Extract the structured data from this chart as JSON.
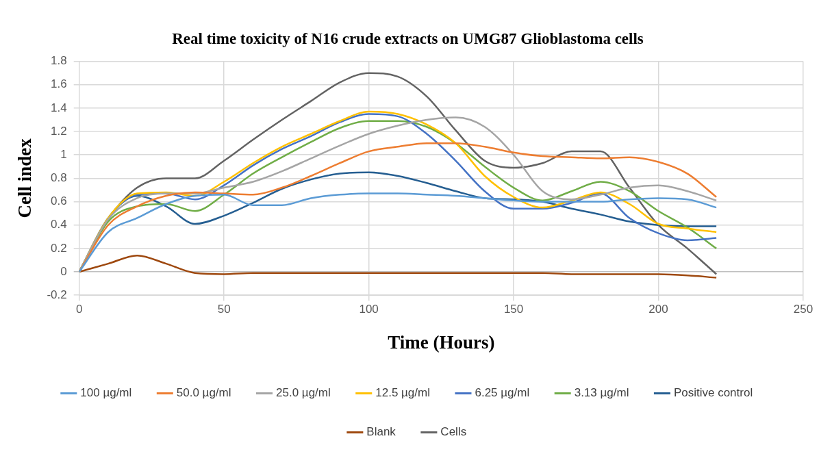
{
  "chart_data": {
    "type": "line",
    "title": "Real time toxicity of N16 crude extracts on UMG87 Glioblastoma cells",
    "xlabel": "Time (Hours)",
    "ylabel": "Cell index",
    "x": [
      0,
      10,
      20,
      30,
      40,
      50,
      60,
      70,
      80,
      90,
      100,
      110,
      120,
      130,
      140,
      150,
      160,
      170,
      180,
      190,
      200,
      210,
      220
    ],
    "xlim": [
      0,
      250
    ],
    "xticks": [
      0,
      50,
      100,
      150,
      200,
      250
    ],
    "ylim": [
      -0.2,
      1.8
    ],
    "yticks": [
      -0.2,
      0,
      0.2,
      0.4,
      0.6,
      0.8,
      1,
      1.2,
      1.4,
      1.6,
      1.8
    ],
    "grid": true,
    "legend": "bottom",
    "marker": "none",
    "line_style": "solid",
    "series": [
      {
        "name": "100 µg/ml",
        "color": "#5b9bd5",
        "values": [
          0,
          0.34,
          0.46,
          0.58,
          0.65,
          0.66,
          0.57,
          0.57,
          0.63,
          0.66,
          0.67,
          0.67,
          0.66,
          0.65,
          0.63,
          0.61,
          0.6,
          0.6,
          0.6,
          0.62,
          0.63,
          0.62,
          0.55
        ]
      },
      {
        "name": "50.0 µg/ml",
        "color": "#ed7d31",
        "values": [
          0,
          0.4,
          0.56,
          0.65,
          0.68,
          0.67,
          0.66,
          0.72,
          0.82,
          0.93,
          1.03,
          1.07,
          1.1,
          1.1,
          1.07,
          1.02,
          0.99,
          0.98,
          0.97,
          0.98,
          0.94,
          0.84,
          0.64
        ]
      },
      {
        "name": "25.0 µg/ml",
        "color": "#a5a5a5",
        "values": [
          0,
          0.45,
          0.63,
          0.67,
          0.67,
          0.72,
          0.77,
          0.86,
          0.97,
          1.08,
          1.18,
          1.25,
          1.3,
          1.32,
          1.24,
          1.0,
          0.69,
          0.62,
          0.66,
          0.72,
          0.74,
          0.69,
          0.61
        ]
      },
      {
        "name": "12.5 µg/ml",
        "color": "#ffc000",
        "values": [
          0,
          0.46,
          0.67,
          0.68,
          0.65,
          0.77,
          0.93,
          1.07,
          1.18,
          1.29,
          1.37,
          1.35,
          1.26,
          1.1,
          0.82,
          0.64,
          0.55,
          0.61,
          0.68,
          0.58,
          0.41,
          0.37,
          0.34
        ]
      },
      {
        "name": "6.25 µg/ml",
        "color": "#4472c4",
        "values": [
          0,
          0.46,
          0.66,
          0.67,
          0.62,
          0.74,
          0.91,
          1.05,
          1.16,
          1.28,
          1.35,
          1.33,
          1.18,
          0.95,
          0.69,
          0.54,
          0.54,
          0.59,
          0.67,
          0.46,
          0.33,
          0.27,
          0.29
        ]
      },
      {
        "name": "3.13 µg/ml",
        "color": "#70ad47",
        "values": [
          0,
          0.43,
          0.56,
          0.58,
          0.52,
          0.66,
          0.84,
          0.98,
          1.11,
          1.23,
          1.29,
          1.29,
          1.24,
          1.1,
          0.9,
          0.72,
          0.61,
          0.69,
          0.77,
          0.69,
          0.52,
          0.38,
          0.2
        ]
      },
      {
        "name": "Positive control",
        "color": "#255e91",
        "values": [
          0,
          0.46,
          0.65,
          0.56,
          0.41,
          0.48,
          0.59,
          0.71,
          0.79,
          0.84,
          0.85,
          0.82,
          0.76,
          0.69,
          0.63,
          0.62,
          0.6,
          0.54,
          0.49,
          0.43,
          0.4,
          0.39,
          0.39
        ]
      },
      {
        "name": "Blank",
        "color": "#9e480e",
        "values": [
          0,
          0.07,
          0.14,
          0.07,
          -0.01,
          -0.02,
          -0.01,
          -0.01,
          -0.01,
          -0.01,
          -0.01,
          -0.01,
          -0.01,
          -0.01,
          -0.01,
          -0.01,
          -0.01,
          -0.02,
          -0.02,
          -0.02,
          -0.02,
          -0.03,
          -0.05
        ]
      },
      {
        "name": "Cells",
        "color": "#636363",
        "values": [
          0,
          0.45,
          0.72,
          0.8,
          0.8,
          0.95,
          1.13,
          1.3,
          1.46,
          1.62,
          1.7,
          1.67,
          1.5,
          1.21,
          0.95,
          0.89,
          0.93,
          1.03,
          1.03,
          0.72,
          0.4,
          0.2,
          -0.02
        ]
      }
    ]
  }
}
